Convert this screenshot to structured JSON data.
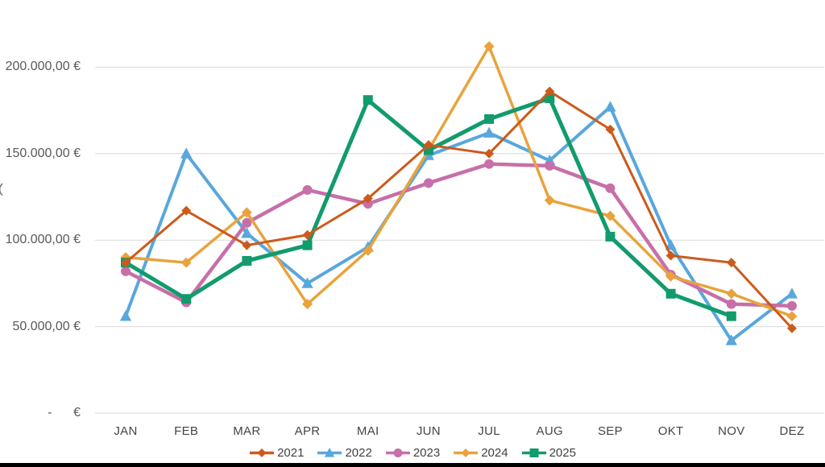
{
  "chart_data": {
    "type": "line",
    "title": "",
    "xlabel": "",
    "ylabel": "",
    "categories": [
      "JAN",
      "FEB",
      "MAR",
      "APR",
      "MAI",
      "JUN",
      "JUL",
      "AUG",
      "SEP",
      "OKT",
      "NOV",
      "DEZ"
    ],
    "series": [
      {
        "name": "2021",
        "marker": "diamond",
        "color": "#CC5A1D",
        "values": [
          87000,
          117000,
          97000,
          103000,
          124000,
          155000,
          150000,
          186000,
          164000,
          91000,
          87000,
          49000
        ]
      },
      {
        "name": "2022",
        "marker": "triangle",
        "color": "#58A7DD",
        "values": [
          56000,
          150000,
          104000,
          75000,
          96000,
          149000,
          162000,
          146000,
          177000,
          97000,
          42000,
          69000
        ]
      },
      {
        "name": "2023",
        "marker": "circle",
        "color": "#C76FA9",
        "values": [
          82000,
          64000,
          110000,
          129000,
          121000,
          133000,
          144000,
          143000,
          130000,
          80000,
          63000,
          62000
        ]
      },
      {
        "name": "2024",
        "marker": "diamond",
        "color": "#E8A33C",
        "values": [
          90000,
          87000,
          116000,
          63000,
          94000,
          152000,
          212000,
          123000,
          114000,
          79000,
          69000,
          56000
        ]
      },
      {
        "name": "2025",
        "marker": "square",
        "color": "#129B6B",
        "values": [
          87000,
          66000,
          88000,
          97000,
          181000,
          152000,
          170000,
          182000,
          102000,
          69000,
          56000
        ]
      }
    ],
    "y_ticks": [
      {
        "value": 200000,
        "label": "200.000,00 €"
      },
      {
        "value": 150000,
        "label": "150.000,00 €"
      },
      {
        "value": 100000,
        "label": "100.000,00 €"
      },
      {
        "value": 50000,
        "label": "50.000,00 €"
      },
      {
        "value": 0,
        "label": "-      €"
      }
    ],
    "ylim": [
      0,
      220000
    ],
    "grid": true,
    "legend_position": "bottom",
    "legend_entries": [
      "2021",
      "2022",
      "2023",
      "2024",
      "2025"
    ],
    "draw_order": [
      "2022",
      "2023",
      "2024",
      "2025",
      "2021"
    ],
    "gridline_color": "#D9D9D9",
    "axis_label_color": "#595959",
    "month_label_color": "#454545",
    "legend_text_color": "#404040",
    "background_color": "#FFFFFF",
    "bottom_bar_color": "#000000"
  }
}
